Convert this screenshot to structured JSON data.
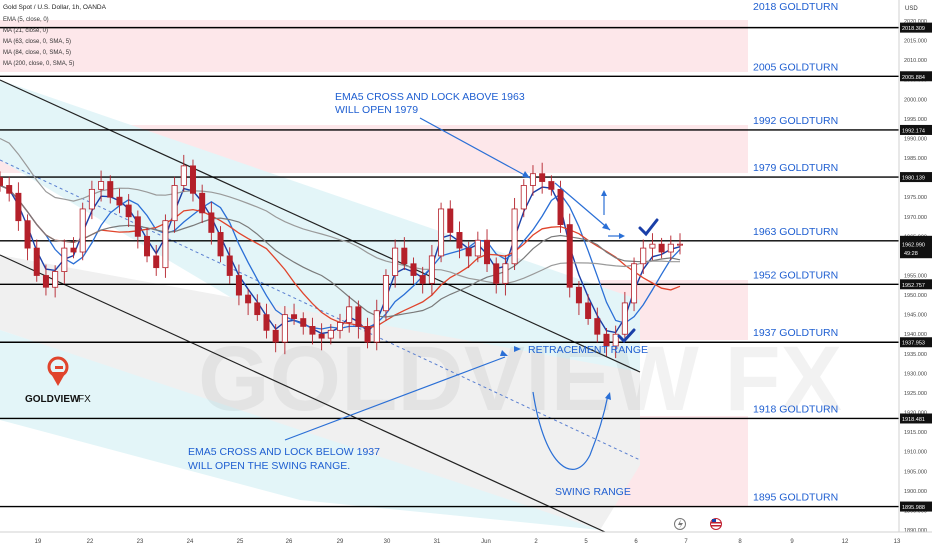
{
  "header": {
    "symbol": "Gold Spot / U.S. Dollar, 1h, OANDA",
    "indicators": [
      "EMA (5, close, 0)",
      "MA (21, close, 0)",
      "MA (63, close, 0, SMA, 5)",
      "MA (84, close, 0, SMA, 5)",
      "MA (200, close, 0, SMA, 5)"
    ]
  },
  "colors": {
    "pink_zone": "#fde7ea",
    "cyan_zone": "#e3f5f8",
    "grey_zone": "#f0f0f0",
    "blue_label": "#1f5fd1",
    "ema5": "#1a3fa8",
    "ma21": "#2a6fd6",
    "ma63": "#e0442c",
    "ma84": "#7a7a7a",
    "ma200": "#9a9a9a",
    "candle": "#b4202a",
    "level_line": "#000000"
  },
  "chart_data": {
    "type": "candlestick",
    "y_axis": {
      "unit": "USD",
      "ylim": [
        1887,
        2021
      ],
      "ticks": [
        1890,
        1895,
        1900,
        1905,
        1910,
        1915,
        1920,
        1925,
        1930,
        1935,
        1940,
        1945,
        1950,
        1955,
        1960,
        1965,
        1970,
        1975,
        1980,
        1985,
        1990,
        1995,
        2000,
        2005,
        2010,
        2015,
        2020
      ]
    },
    "x_axis": {
      "labels": [
        "19",
        "22",
        "23",
        "24",
        "25",
        "26",
        "29",
        "30",
        "31",
        "Jun",
        "2",
        "5",
        "6",
        "7",
        "8",
        "9",
        "12",
        "13"
      ]
    },
    "levels": [
      {
        "name": "2018 GOLDTURN",
        "price": 2018.309,
        "tag": "2018.309"
      },
      {
        "name": "2005 GOLDTURN",
        "price": 2005.884,
        "tag": "2005.884"
      },
      {
        "name": "1992 GOLDTURN",
        "price": 1992.174,
        "tag": "1992.174"
      },
      {
        "name": "1979 GOLDTURN",
        "price": 1980.139,
        "tag": "1980.139"
      },
      {
        "name": "1963 GOLDTURN",
        "price": 1963.856,
        "tag": "1963.856"
      },
      {
        "name": "1952 GOLDTURN",
        "price": 1952.757,
        "tag": "1952.757"
      },
      {
        "name": "1937 GOLDTURN",
        "price": 1937.953,
        "tag": "1937.953"
      },
      {
        "name": "1918 GOLDTURN",
        "price": 1918.481,
        "tag": "1918.481"
      },
      {
        "name": "1895 GOLDTURN",
        "price": 1895.988,
        "tag": "1895.988"
      }
    ],
    "current_price": {
      "price": 1962.99,
      "tag": "1962.990",
      "countdown": "49:28"
    },
    "price_series": [
      1978,
      1976,
      1969,
      1962,
      1955,
      1952,
      1956,
      1962,
      1961,
      1972,
      1977,
      1979,
      1975,
      1973,
      1970,
      1965,
      1960,
      1957,
      1969,
      1978,
      1983,
      1976,
      1971,
      1966,
      1960,
      1955,
      1950,
      1948,
      1945,
      1941,
      1938,
      1945,
      1944,
      1942,
      1940,
      1939,
      1941,
      1943,
      1947,
      1942,
      1938,
      1946,
      1955,
      1962,
      1958,
      1955,
      1953,
      1960,
      1972,
      1966,
      1962,
      1960,
      1964,
      1958,
      1953,
      1958,
      1972,
      1978,
      1981,
      1979,
      1977,
      1968,
      1952,
      1948,
      1944,
      1940,
      1937,
      1940,
      1948,
      1958,
      1962,
      1963,
      1961,
      1963,
      1963
    ]
  },
  "annotations": {
    "ema_up_1": "EMA5 CROSS AND LOCK ABOVE 1963",
    "ema_up_2": "WILL OPEN 1979",
    "ema_down_1": "EMA5 CROSS AND LOCK BELOW 1937",
    "ema_down_2": "WILL OPEN THE SWING RANGE.",
    "retracement": "RETRACEMENT RANGE",
    "swing": "SWING RANGE"
  },
  "logo": {
    "brand": "GOLDVIEW",
    "suffix": "FX",
    "watermark": "GOLDVIEW FX"
  }
}
